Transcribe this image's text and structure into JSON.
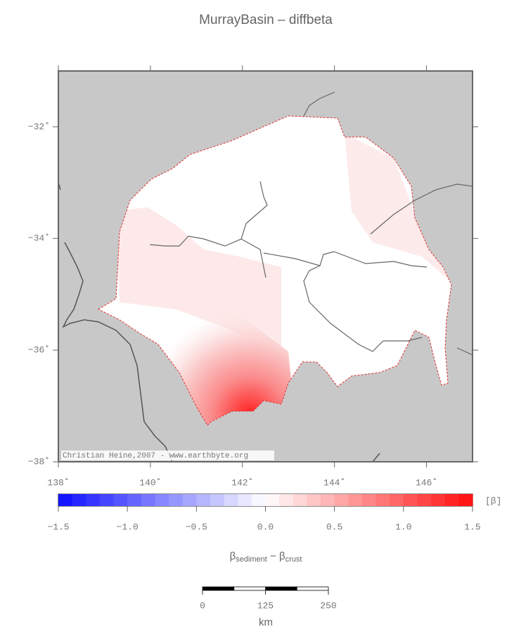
{
  "title": "MurrayBasin – diffbeta",
  "map": {
    "xlim": [
      138,
      147
    ],
    "ylim": [
      -38,
      -31
    ],
    "xticks": [
      {
        "value": 138,
        "label": "138˚"
      },
      {
        "value": 140,
        "label": "140˚"
      },
      {
        "value": 142,
        "label": "142˚"
      },
      {
        "value": 144,
        "label": "144˚"
      },
      {
        "value": 146,
        "label": "146˚"
      }
    ],
    "yticks": [
      {
        "value": -32,
        "label": "−32˚"
      },
      {
        "value": -34,
        "label": "−34˚"
      },
      {
        "value": -36,
        "label": "−36˚"
      },
      {
        "value": -38,
        "label": "−38˚"
      }
    ],
    "credit": "Christian Heine,2007 - www.earthbyte.org"
  },
  "colorbar": {
    "lim": [
      -1.5,
      1.5
    ],
    "ticks": [
      {
        "value": -1.5,
        "label": "−1.5"
      },
      {
        "value": -1.0,
        "label": "−1.0"
      },
      {
        "value": -0.5,
        "label": "−0.5"
      },
      {
        "value": 0,
        "label": "0.0"
      },
      0.5,
      {
        "value": 1.0,
        "label": "1.0"
      },
      1.5
    ],
    "unit": "[β]",
    "label_parts": [
      "β",
      "sediment",
      " − β",
      "crust"
    ]
  },
  "scalebar": {
    "lim": [
      0,
      250
    ],
    "ticks": [
      0,
      125,
      250
    ],
    "unit": "km"
  }
}
